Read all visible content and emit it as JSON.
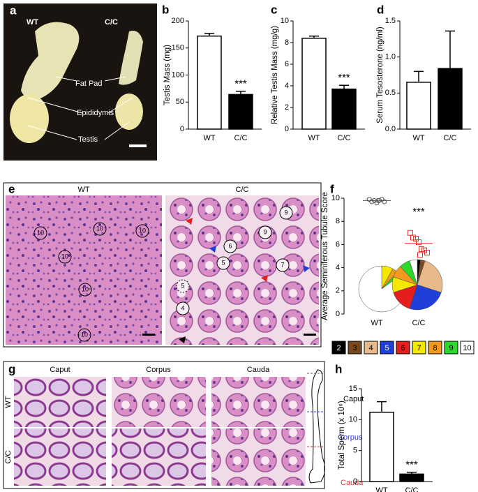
{
  "chart_data": [
    {
      "type": "bar",
      "panel": "b",
      "ylabel": "Testis Mass (mg)",
      "categories": [
        "WT",
        "C/C"
      ],
      "values": [
        172,
        64
      ],
      "errors": [
        5,
        6
      ],
      "colors": [
        "#ffffff",
        "#000000"
      ],
      "ylim": [
        0,
        200
      ],
      "yticks": [
        0,
        50,
        100,
        150,
        200
      ],
      "annotation": "***"
    },
    {
      "type": "bar",
      "panel": "c",
      "ylabel": "Relative Testis Mass (mg/g)",
      "categories": [
        "WT",
        "C/C"
      ],
      "values": [
        8.4,
        3.7
      ],
      "errors": [
        0.2,
        0.35
      ],
      "colors": [
        "#ffffff",
        "#000000"
      ],
      "ylim": [
        0,
        10
      ],
      "yticks": [
        0,
        2,
        4,
        6,
        8,
        10
      ],
      "annotation": "***"
    },
    {
      "type": "bar",
      "panel": "d",
      "ylabel": "Serum Tesosterone (ng/ml)",
      "categories": [
        "WT",
        "C/C"
      ],
      "values": [
        0.65,
        0.84
      ],
      "errors": [
        0.15,
        0.52
      ],
      "colors": [
        "#ffffff",
        "#000000"
      ],
      "ylim": [
        0,
        1.5
      ],
      "yticks": [
        {
          "value": 0,
          "label": "0.0"
        },
        0.5,
        {
          "value": 1,
          "label": "1.0"
        },
        1.5
      ]
    },
    {
      "type": "scatter",
      "panel": "f",
      "ylabel": "Average Seminiferous Tubule Score",
      "categories": [
        "WT",
        "C/C"
      ],
      "series": [
        {
          "color": "#555555",
          "values": [
            9.9,
            9.7,
            9.8,
            9.6,
            9.8,
            9.9,
            9.7,
            9.8
          ]
        },
        {
          "color": "#e8322b",
          "values": [
            7.0,
            6.6,
            6.5,
            6.2,
            5.6,
            5.5,
            5.3,
            5.1
          ]
        }
      ],
      "means": [
        9.8,
        6.1
      ],
      "ylim": [
        0,
        10
      ],
      "yticks": [
        0,
        2,
        4,
        6,
        8,
        10
      ],
      "annotation": "***",
      "pie_categories": [
        "2",
        "3",
        "4",
        "5",
        "6",
        "7",
        "8",
        "9",
        "10"
      ],
      "pie_colors": [
        "#000000",
        "#7a4a1e",
        "#e8b98a",
        "#1f3fd8",
        "#e41e1e",
        "#f5e800",
        "#f29a1d",
        "#2bd82b",
        "#ffffff"
      ],
      "pies": [
        [
          0,
          0,
          0,
          0,
          0,
          8,
          4,
          3,
          85
        ],
        [
          2,
          3,
          25,
          25,
          15,
          10,
          8,
          7,
          5
        ]
      ]
    },
    {
      "type": "bar",
      "panel": "h",
      "ylabel": "Total Sperm (x 10⁶)",
      "categories": [
        "WT",
        "C/C"
      ],
      "values": [
        11.2,
        1.2
      ],
      "errors": [
        1.7,
        0.3
      ],
      "colors": [
        "#ffffff",
        "#000000"
      ],
      "ylim": [
        0,
        15
      ],
      "yticks": [
        0,
        5,
        10,
        15
      ],
      "annotation": "***"
    }
  ],
  "images": {
    "a": {
      "panel": "a",
      "left": "WT",
      "right": "C/C",
      "labels": [
        "Fat Pad",
        "Epididymis",
        "Testis"
      ]
    },
    "e": {
      "panel": "e",
      "left": "WT",
      "right": "C/C",
      "wt_scores": [
        "10",
        "10",
        "10",
        "10",
        "10",
        "10"
      ],
      "cc_scores": [
        "9",
        "9",
        "6",
        "5",
        "5",
        "7",
        "4"
      ]
    },
    "g": {
      "panel": "g",
      "columns": [
        "Caput",
        "Corpus",
        "Cauda"
      ],
      "rows": [
        "WT",
        "C/C"
      ],
      "diagram": [
        "Caput",
        "Corpus",
        "Cauda"
      ]
    }
  }
}
